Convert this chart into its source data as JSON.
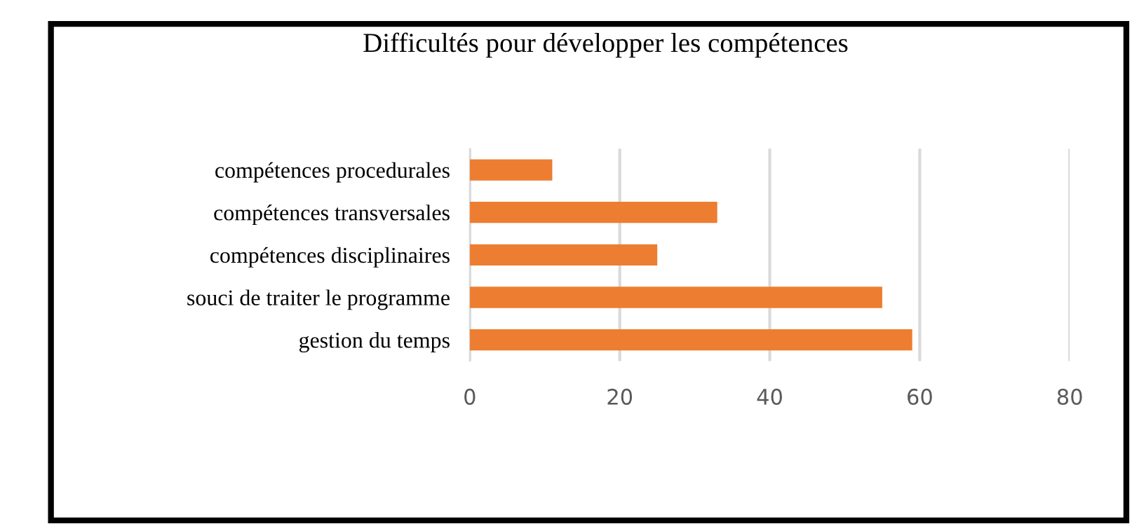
{
  "chart_data": {
    "type": "bar",
    "orientation": "horizontal",
    "title": "Difficultés pour développer les compétences",
    "categories": [
      "compétences procedurales",
      "compétences transversales",
      "compétences disciplinaires",
      "souci de traiter le programme",
      "gestion du temps"
    ],
    "series": [
      {
        "color": "#ed7d31",
        "values": [
          11,
          33,
          25,
          55,
          59
        ]
      }
    ],
    "xlim": [
      0,
      80
    ],
    "xticks": [
      0,
      20,
      40,
      60,
      80
    ],
    "grid": "x"
  }
}
